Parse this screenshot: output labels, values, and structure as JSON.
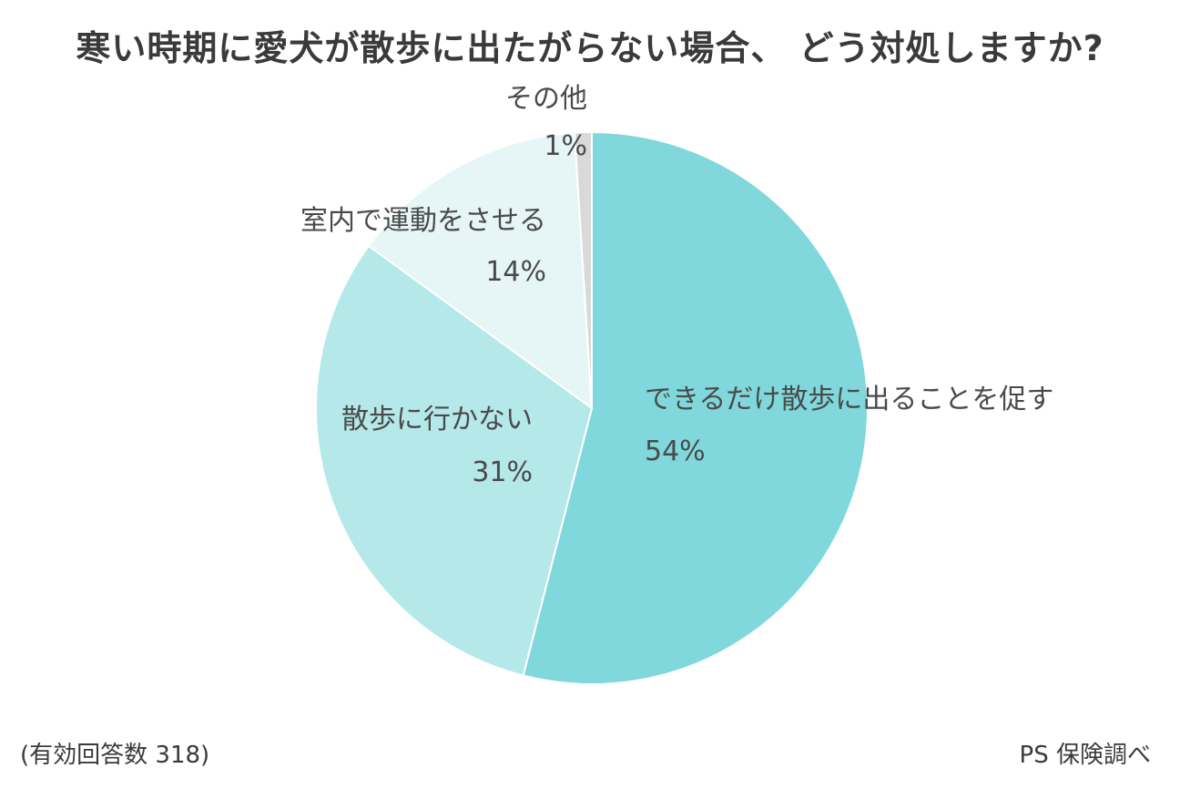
{
  "title": "寒い時期に愛犬が散歩に出たがらない場合、 どう対処しますか?",
  "footnote": "(有効回答数 318)",
  "source": "PS 保険調べ",
  "chart_data": {
    "type": "pie",
    "title": "寒い時期に愛犬が散歩に出たがらない場合、 どう対処しますか?",
    "slices": [
      {
        "label": "できるだけ散歩に出ることを促す",
        "pct_label": "54%",
        "value": 54,
        "color": "#80d8dc"
      },
      {
        "label": "散歩に行かない",
        "pct_label": "31%",
        "value": 31,
        "color": "#b5e8e9"
      },
      {
        "label": "室内で運動をさせる",
        "pct_label": "14%",
        "value": 14,
        "color": "#e6f6f6"
      },
      {
        "label": "その他",
        "pct_label": "1%",
        "value": 1,
        "color": "#d9d9d9"
      }
    ],
    "legend": "none",
    "start": "12 o'clock, clockwise"
  }
}
